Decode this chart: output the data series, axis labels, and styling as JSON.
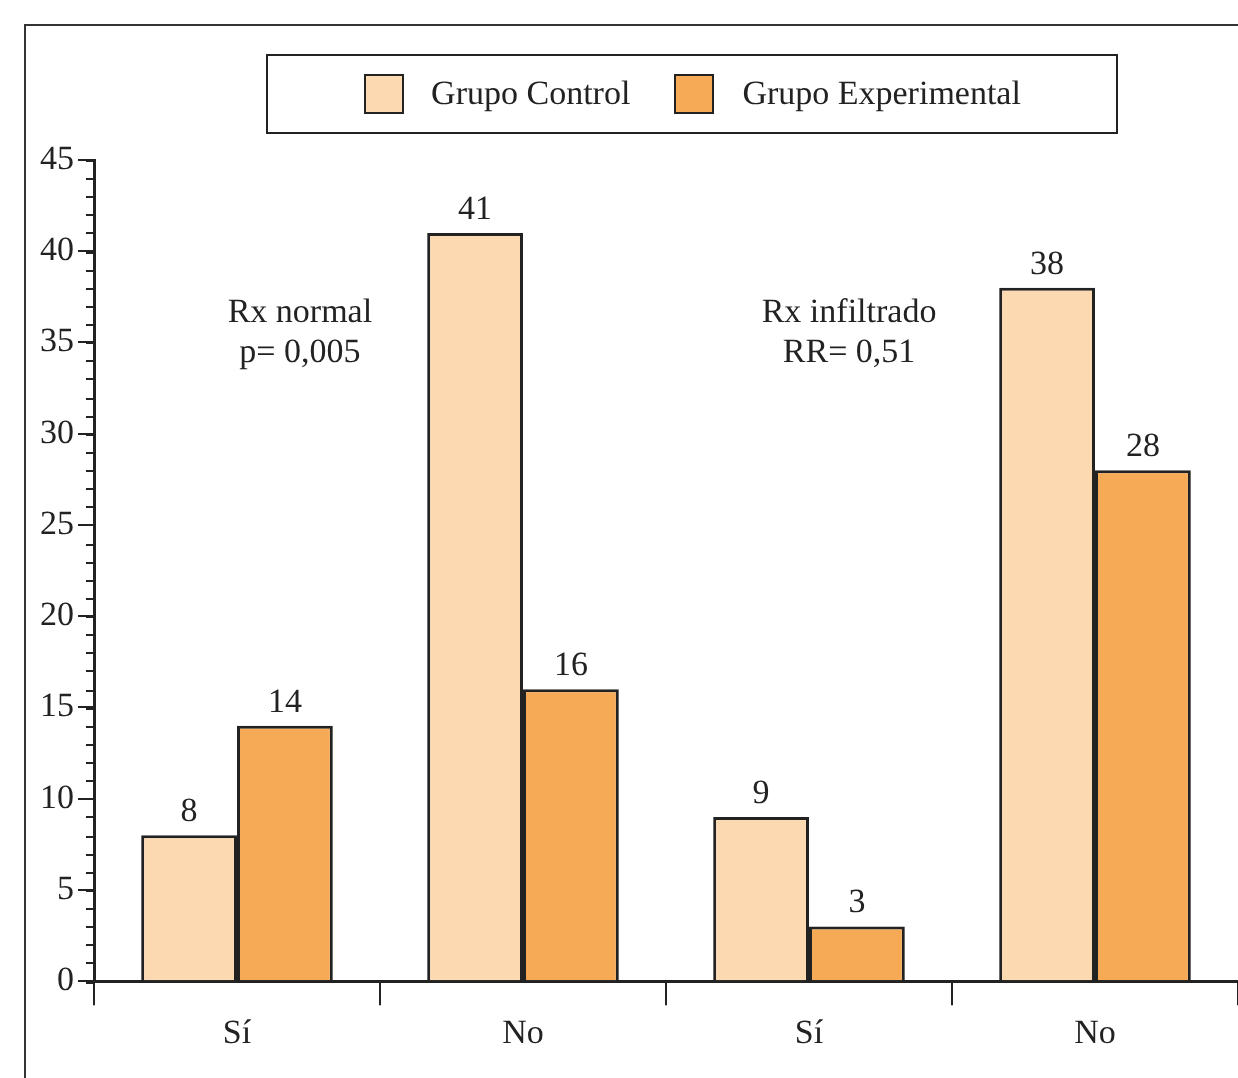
{
  "chart_data": {
    "type": "bar",
    "categories": [
      "Sí",
      "No",
      "Sí",
      "No"
    ],
    "series": [
      {
        "name": "Grupo Control",
        "color": "#fcd9b0",
        "values": [
          8,
          41,
          9,
          38
        ]
      },
      {
        "name": "Grupo Experimental",
        "color": "#f6aa55",
        "values": [
          14,
          16,
          3,
          28
        ]
      }
    ],
    "ylim": [
      0,
      45
    ],
    "yticks": [
      0,
      5,
      10,
      15,
      20,
      25,
      30,
      35,
      40,
      45
    ],
    "grid": false,
    "legend": "top",
    "data_labels": true,
    "annotations": [
      "Rx normal",
      "p= 0,005",
      "Rx infiltrado",
      "RR= 0,51"
    ]
  }
}
